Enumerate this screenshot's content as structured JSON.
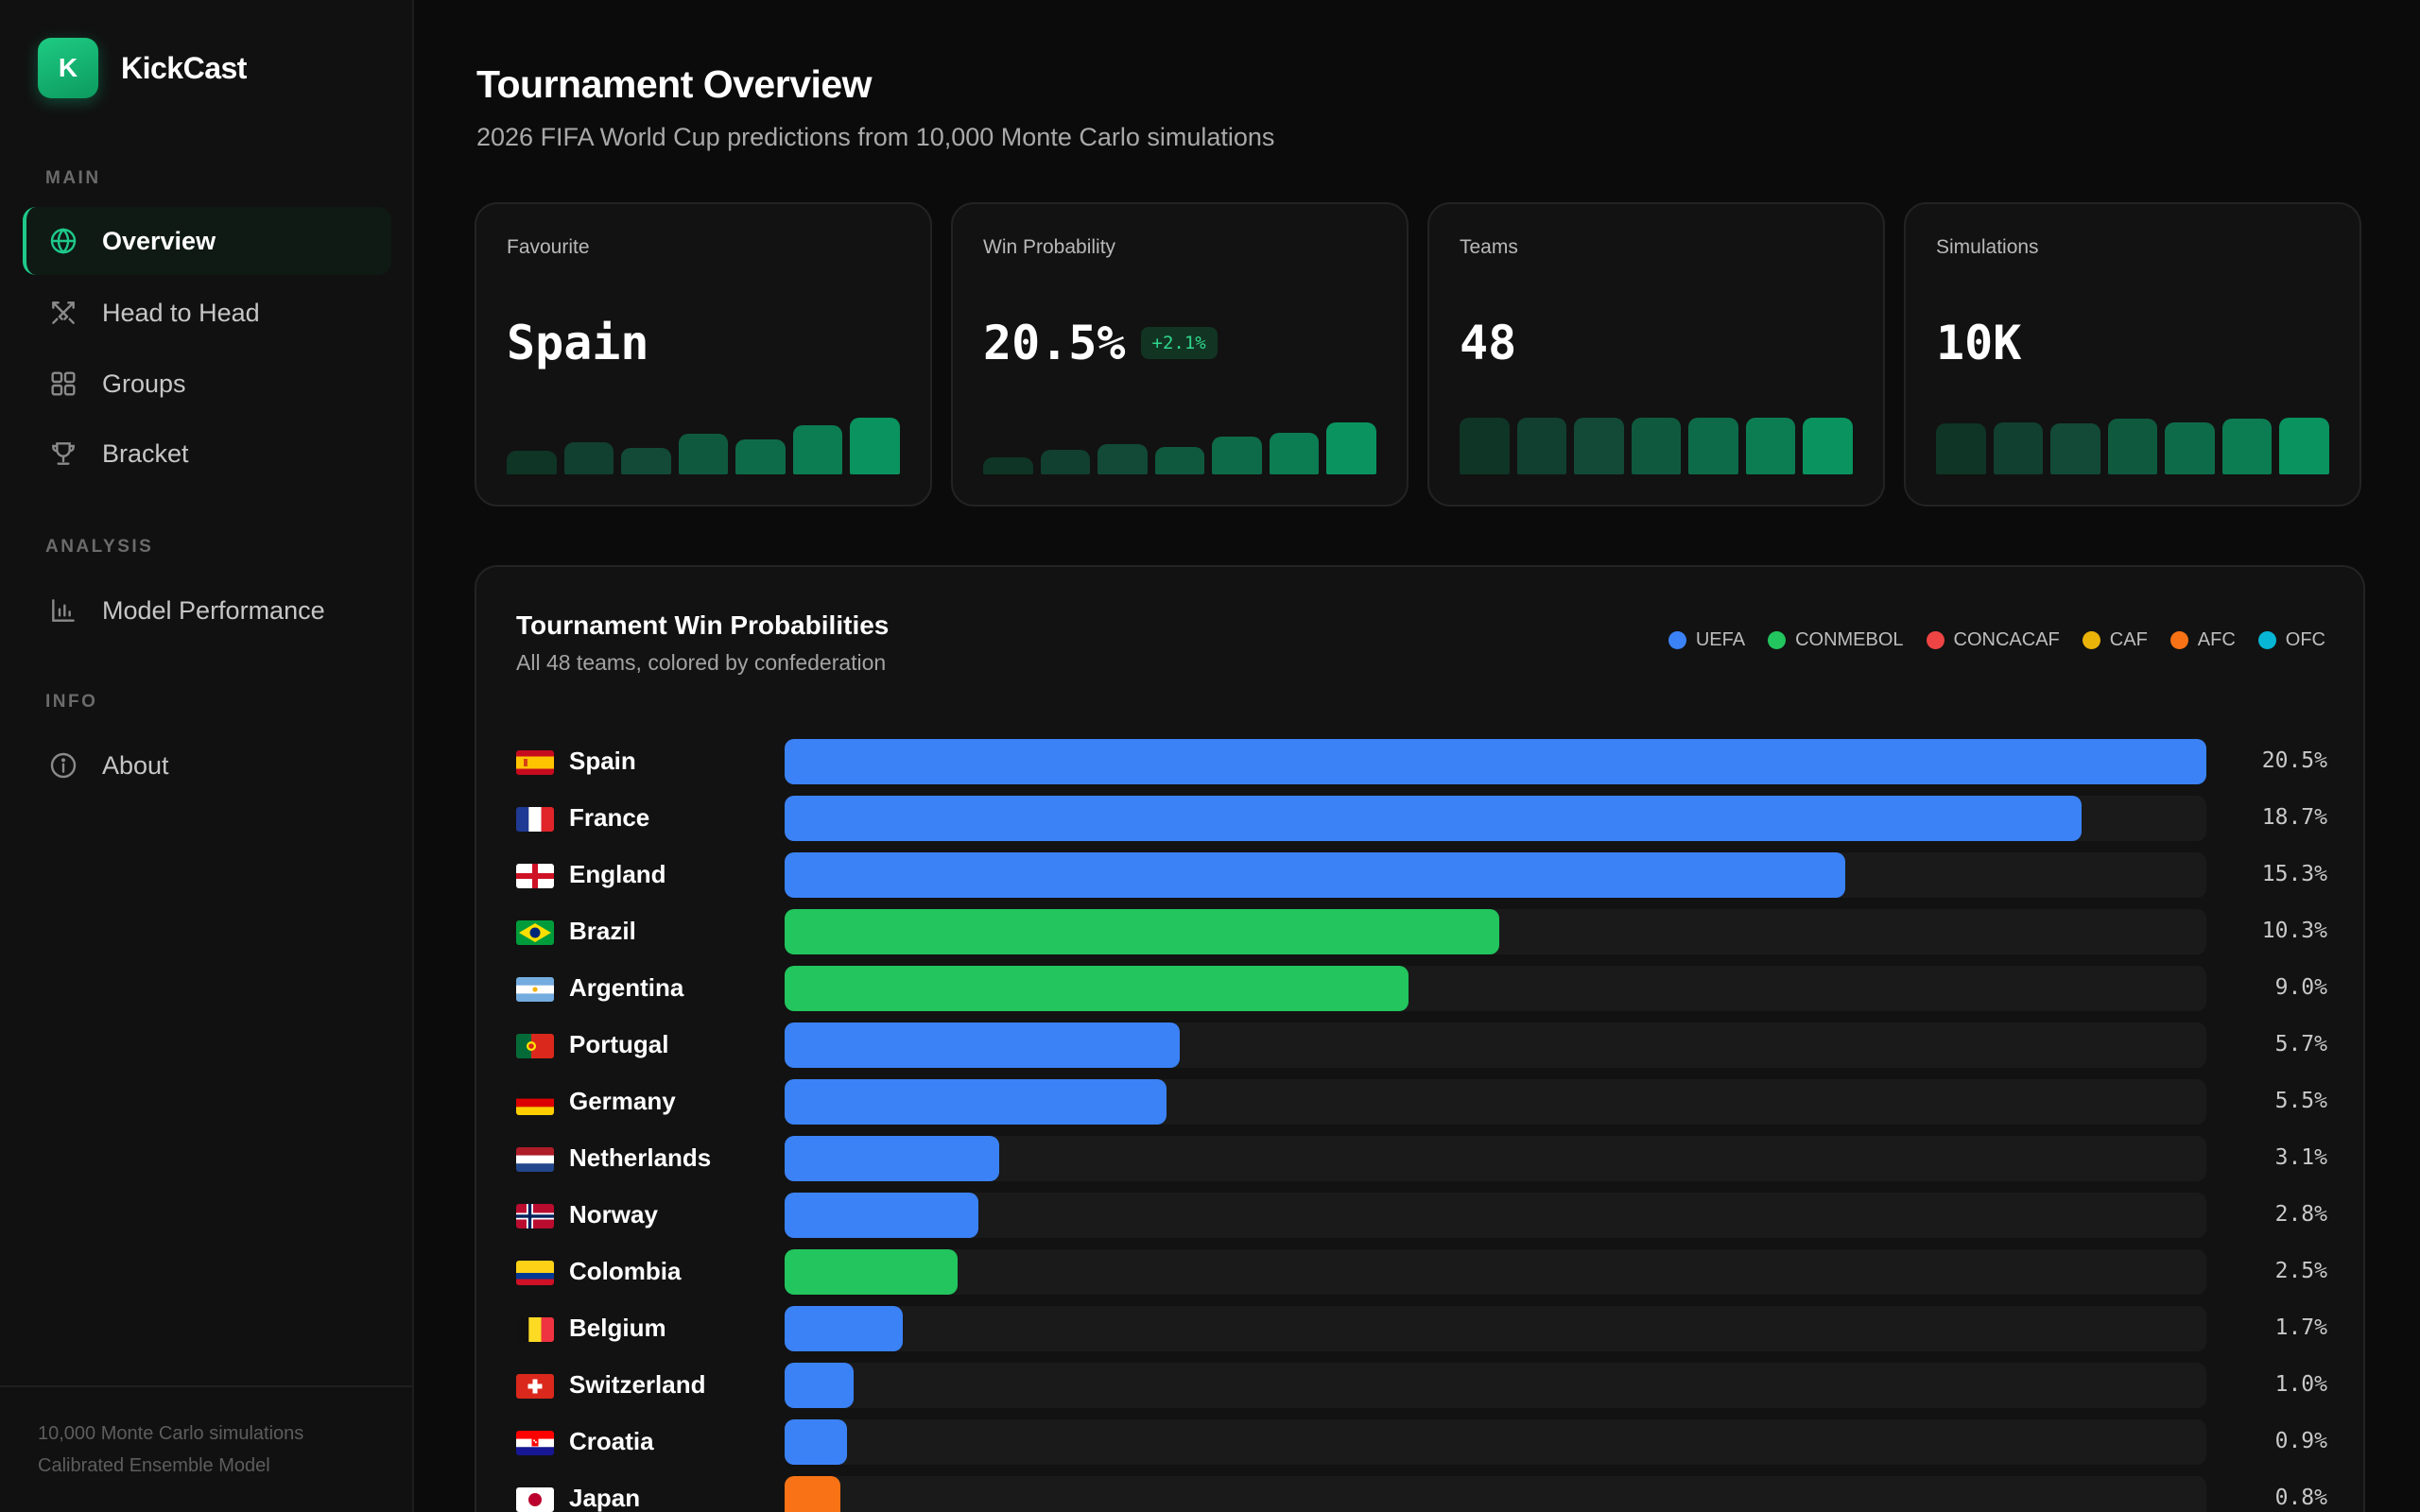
{
  "app": {
    "name": "KickCast",
    "logo_letter": "K"
  },
  "sidebar": {
    "sections": [
      {
        "label": "MAIN",
        "items": [
          {
            "label": "Overview",
            "icon": "globe-icon",
            "active": true
          },
          {
            "label": "Head to Head",
            "icon": "swords-icon"
          },
          {
            "label": "Groups",
            "icon": "grid-icon"
          },
          {
            "label": "Bracket",
            "icon": "trophy-icon"
          }
        ]
      },
      {
        "label": "ANALYSIS",
        "items": [
          {
            "label": "Model Performance",
            "icon": "bar-chart-icon"
          }
        ]
      },
      {
        "label": "INFO",
        "items": [
          {
            "label": "About",
            "icon": "info-icon"
          }
        ]
      }
    ],
    "footer": {
      "line1": "10,000 Monte Carlo simulations",
      "line2": "Calibrated Ensemble Model"
    }
  },
  "header": {
    "title": "Tournament Overview",
    "subtitle": "2026 FIFA World Cup predictions from 10,000 Monte Carlo simulations"
  },
  "stats": [
    {
      "label": "Favourite",
      "value": "Spain",
      "delta": "",
      "spark": [
        0.42,
        0.56,
        0.46,
        0.72,
        0.62,
        0.86,
        1.0
      ]
    },
    {
      "label": "Win Probability",
      "value": "20.5%",
      "delta": "+2.1%",
      "spark": [
        0.3,
        0.44,
        0.54,
        0.48,
        0.66,
        0.74,
        0.92
      ]
    },
    {
      "label": "Teams",
      "value": "48",
      "delta": "",
      "spark": [
        1,
        1,
        1,
        1,
        1,
        1,
        1
      ]
    },
    {
      "label": "Simulations",
      "value": "10K",
      "delta": "",
      "spark": [
        0.9,
        0.92,
        0.9,
        0.98,
        0.92,
        0.98,
        1.0
      ]
    }
  ],
  "chart_data": {
    "type": "bar",
    "title": "Tournament Win Probabilities",
    "subtitle": "All 48 teams, colored by confederation",
    "legend": [
      {
        "name": "UEFA",
        "color": "#3b82f6"
      },
      {
        "name": "CONMEBOL",
        "color": "#22c55e"
      },
      {
        "name": "CONCACAF",
        "color": "#ef4444"
      },
      {
        "name": "CAF",
        "color": "#eab308"
      },
      {
        "name": "AFC",
        "color": "#f97316"
      },
      {
        "name": "OFC",
        "color": "#06b6d4"
      }
    ],
    "xlim": [
      0,
      20.5
    ],
    "teams": [
      {
        "name": "Spain",
        "confed": "UEFA",
        "value": 20.5,
        "label": "20.5%",
        "flag": "spain-flag-icon"
      },
      {
        "name": "France",
        "confed": "UEFA",
        "value": 18.7,
        "label": "18.7%",
        "flag": "france-flag-icon"
      },
      {
        "name": "England",
        "confed": "UEFA",
        "value": 15.3,
        "label": "15.3%",
        "flag": "england-flag-icon"
      },
      {
        "name": "Brazil",
        "confed": "CONMEBOL",
        "value": 10.3,
        "label": "10.3%",
        "flag": "brazil-flag-icon"
      },
      {
        "name": "Argentina",
        "confed": "CONMEBOL",
        "value": 9.0,
        "label": "9.0%",
        "flag": "argentina-flag-icon"
      },
      {
        "name": "Portugal",
        "confed": "UEFA",
        "value": 5.7,
        "label": "5.7%",
        "flag": "portugal-flag-icon"
      },
      {
        "name": "Germany",
        "confed": "UEFA",
        "value": 5.5,
        "label": "5.5%",
        "flag": "germany-flag-icon"
      },
      {
        "name": "Netherlands",
        "confed": "UEFA",
        "value": 3.1,
        "label": "3.1%",
        "flag": "netherlands-flag-icon"
      },
      {
        "name": "Norway",
        "confed": "UEFA",
        "value": 2.8,
        "label": "2.8%",
        "flag": "norway-flag-icon"
      },
      {
        "name": "Colombia",
        "confed": "CONMEBOL",
        "value": 2.5,
        "label": "2.5%",
        "flag": "colombia-flag-icon"
      },
      {
        "name": "Belgium",
        "confed": "UEFA",
        "value": 1.7,
        "label": "1.7%",
        "flag": "belgium-flag-icon"
      },
      {
        "name": "Switzerland",
        "confed": "UEFA",
        "value": 1.0,
        "label": "1.0%",
        "flag": "switzerland-flag-icon"
      },
      {
        "name": "Croatia",
        "confed": "UEFA",
        "value": 0.9,
        "label": "0.9%",
        "flag": "croatia-flag-icon"
      },
      {
        "name": "Japan",
        "confed": "AFC",
        "value": 0.8,
        "label": "0.8%",
        "flag": "japan-flag-icon"
      }
    ]
  }
}
